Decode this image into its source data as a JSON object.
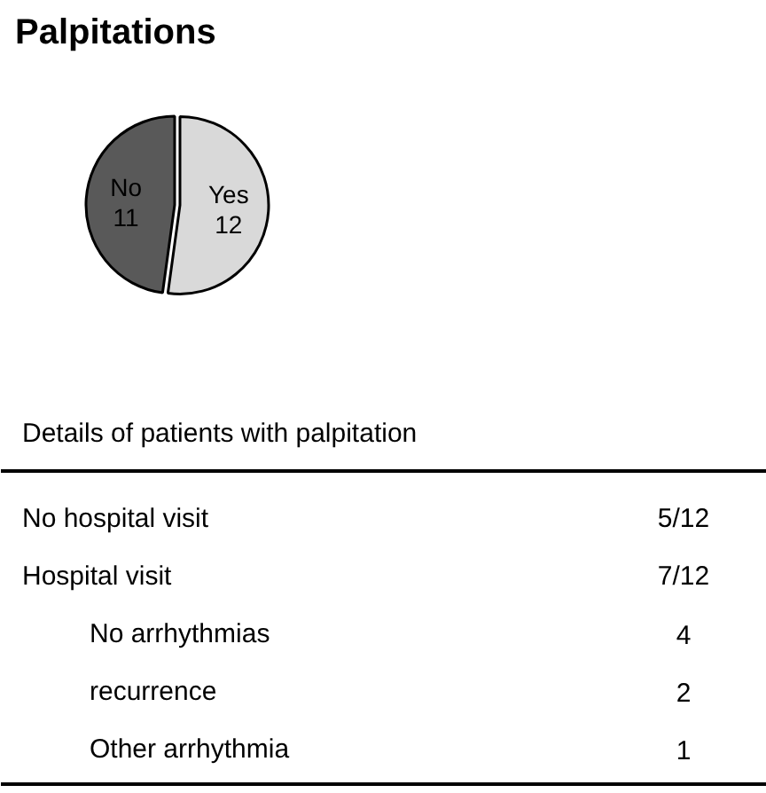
{
  "chart_data": {
    "type": "pie",
    "title": "Palpitations",
    "categories": [
      "Yes",
      "No"
    ],
    "values": [
      12,
      11
    ],
    "colors": [
      "#d9d9d9",
      "#595959"
    ],
    "data_labels": true,
    "annotations": [
      "Details of patients with palpitation",
      "No hospital visit",
      "5/12",
      "Hospital visit",
      "7/12",
      "No arrhythmias",
      "4",
      "recurrence",
      "2",
      "Other arrhythmia",
      "1"
    ]
  }
}
